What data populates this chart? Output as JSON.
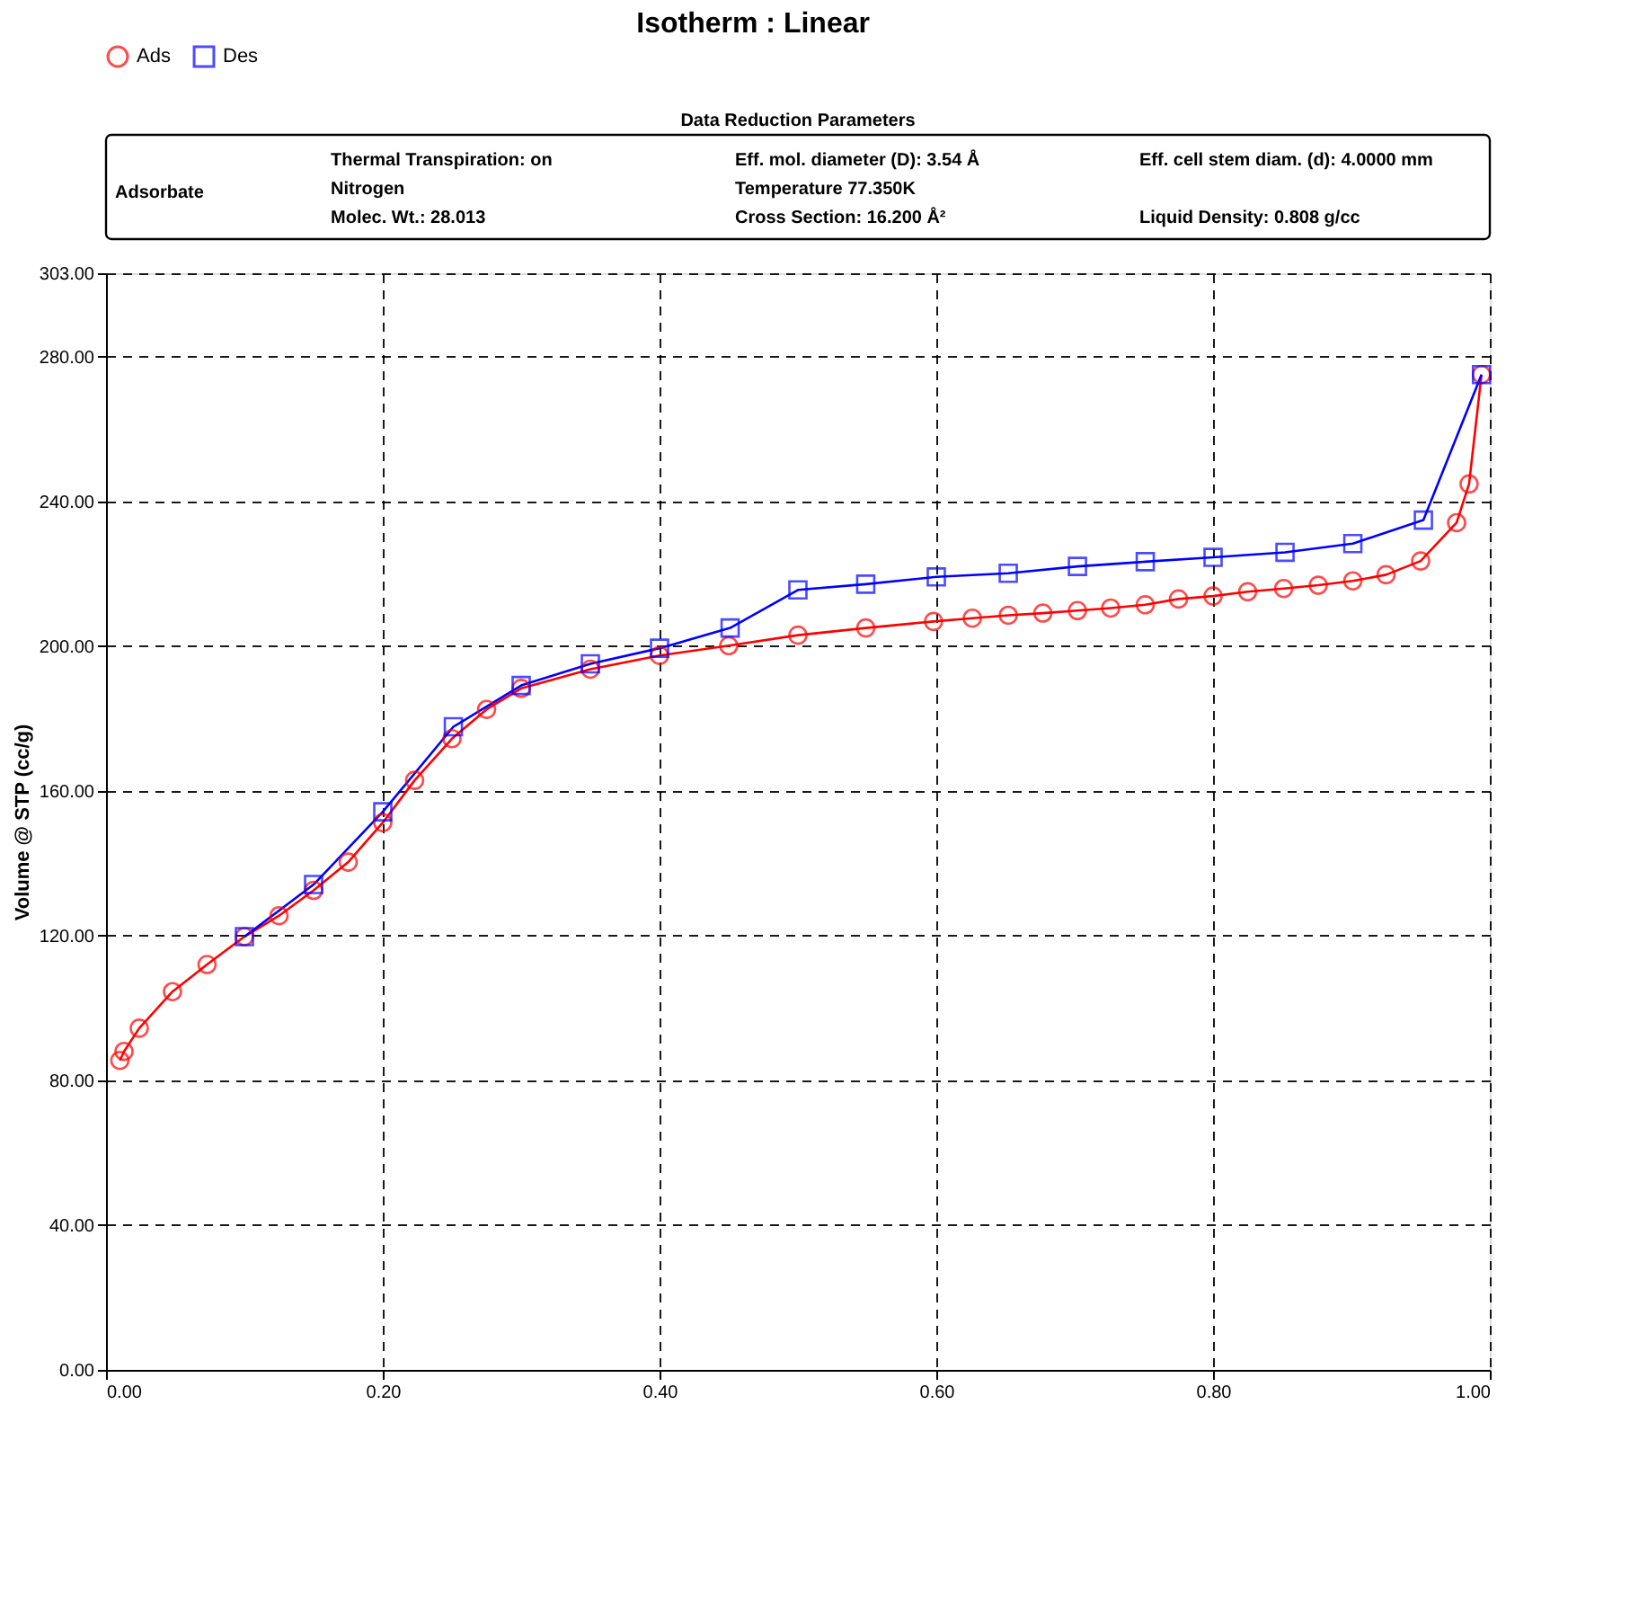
{
  "chart_data": {
    "type": "line",
    "title": "Isotherm :   Linear",
    "ylabel": "Volume @ STP (cc/g)",
    "annotations": [
      "Data Reduction Parameters",
      "Adsorbate",
      "Thermal Transpiration: on",
      "Nitrogen",
      "Molec. Wt.:    28.013",
      "Eff. mol. diameter (D): 3.54 Å",
      "Temperature    77.350K",
      "Cross Section:    16.200 Å²",
      "Eff. cell stem diam. (d): 4.0000 mm",
      "Liquid Density:    0.808 g/cc"
    ],
    "series": [
      {
        "name": "Ads",
        "color": "#ff0000",
        "marker": "circle",
        "x": [
          0.01,
          0.013,
          0.024,
          0.048,
          0.073,
          0.1,
          0.125,
          0.15,
          0.175,
          0.2,
          0.223,
          0.25,
          0.275,
          0.3,
          0.35,
          0.4,
          0.45,
          0.5,
          0.549,
          0.598,
          0.626,
          0.652,
          0.677,
          0.702,
          0.726,
          0.751,
          0.775,
          0.8,
          0.825,
          0.851,
          0.876,
          0.901,
          0.925,
          0.95,
          0.976,
          0.985,
          0.994
        ],
        "values": [
          85.5,
          88,
          94.4,
          104.5,
          112,
          119.7,
          125.5,
          132.5,
          140.3,
          151.2,
          162.9,
          174.4,
          182.5,
          188.3,
          193.6,
          197.4,
          200.1,
          203,
          205,
          206.8,
          207.7,
          208.5,
          209.1,
          209.8,
          210.5,
          211.4,
          213,
          213.8,
          215,
          215.9,
          216.8,
          218,
          219.7,
          223.5,
          234.1,
          244.8,
          275
        ]
      },
      {
        "name": "Des",
        "color": "#0000ff",
        "marker": "square",
        "x": [
          0.994,
          0.952,
          0.901,
          0.852,
          0.8,
          0.751,
          0.702,
          0.652,
          0.6,
          0.549,
          0.5,
          0.451,
          0.4,
          0.35,
          0.3,
          0.251,
          0.2,
          0.15,
          0.1
        ],
        "values": [
          275,
          234.8,
          228.3,
          225.9,
          224.5,
          223.3,
          222,
          220.1,
          219.1,
          217.1,
          215.5,
          205,
          199.4,
          195.1,
          189.1,
          177.7,
          154.2,
          134.1,
          119.7
        ]
      }
    ],
    "xlim": [
      0,
      1
    ],
    "xticks": [
      {
        "value": 0,
        "label": "0.00"
      },
      {
        "value": 0.2,
        "label": "0.20"
      },
      {
        "value": 0.4,
        "label": "0.40"
      },
      {
        "value": 0.6,
        "label": "0.60"
      },
      {
        "value": 0.8,
        "label": "0.80"
      },
      {
        "value": 1,
        "label": "1.00"
      }
    ],
    "ylim": [
      0,
      303
    ],
    "yticks": [
      {
        "value": 0,
        "label": "0.00"
      },
      {
        "value": 40,
        "label": "40.00"
      },
      {
        "value": 80,
        "label": "80.00"
      },
      {
        "value": 120,
        "label": "120.00"
      },
      {
        "value": 160,
        "label": "160.00"
      },
      {
        "value": 200,
        "label": "200.00"
      },
      {
        "value": 240,
        "label": "240.00"
      },
      {
        "value": 280,
        "label": "280.00"
      },
      {
        "value": 303,
        "label": "303.00"
      }
    ],
    "grid": true,
    "legend": "top left",
    "line_style": "solid"
  }
}
